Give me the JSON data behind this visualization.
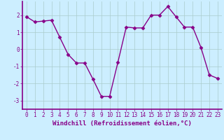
{
  "x": [
    0,
    1,
    2,
    3,
    4,
    5,
    6,
    7,
    8,
    9,
    10,
    11,
    12,
    13,
    14,
    15,
    16,
    17,
    18,
    19,
    20,
    21,
    22,
    23
  ],
  "y": [
    1.9,
    1.6,
    1.65,
    1.7,
    0.7,
    -0.3,
    -0.8,
    -0.8,
    -1.75,
    -2.75,
    -2.75,
    -0.75,
    1.3,
    1.25,
    1.25,
    2.0,
    2.0,
    2.5,
    1.9,
    1.3,
    1.3,
    0.1,
    -1.5,
    -1.7
  ],
  "line_color": "#880088",
  "marker": "D",
  "marker_size": 2.5,
  "background_color": "#cceeff",
  "grid_color": "#aacccc",
  "xlabel": "Windchill (Refroidissement éolien,°C)",
  "ylabel": "",
  "xlim": [
    -0.5,
    23.5
  ],
  "ylim": [
    -3.5,
    2.8
  ],
  "yticks": [
    -3,
    -2,
    -1,
    0,
    1,
    2
  ],
  "xticks": [
    0,
    1,
    2,
    3,
    4,
    5,
    6,
    7,
    8,
    9,
    10,
    11,
    12,
    13,
    14,
    15,
    16,
    17,
    18,
    19,
    20,
    21,
    22,
    23
  ],
  "tick_fontsize": 5.5,
  "xlabel_fontsize": 6.5,
  "linewidth": 1.0,
  "border_color": "#880088",
  "axis_linewidth": 1.2
}
